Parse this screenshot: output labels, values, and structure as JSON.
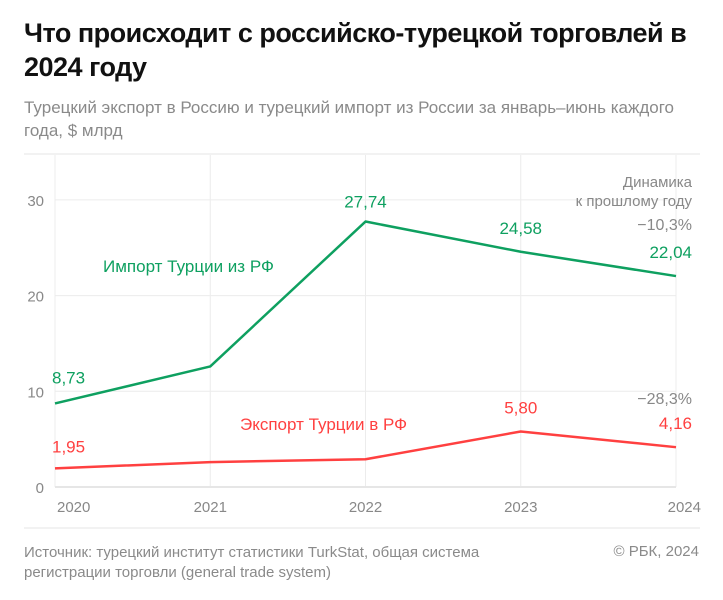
{
  "title": "Что происходит с российско-турецкой торговлей в 2024 году",
  "subtitle": "Турецкий экспорт в Россию и турецкий импорт из России за январь–июнь каждого года, $ млрд",
  "source": "Источник: турецкий институт статистики TurkStat, общая система регистрации торговли (general trade system)",
  "copyright": "© РБК, 2024",
  "chart_data": {
    "type": "line",
    "x": [
      "2020",
      "2021",
      "2022",
      "2023",
      "2024"
    ],
    "ylim": [
      0,
      33
    ],
    "yticks": [
      0,
      10,
      20,
      30
    ],
    "grid": true,
    "dynamics_header": [
      "Динамика",
      "к прошлому году"
    ],
    "series": [
      {
        "name": "Импорт Турции из РФ",
        "color": "#0ea060",
        "values": [
          8.73,
          12.6,
          27.74,
          24.58,
          22.04
        ],
        "labels": [
          "8,73",
          "",
          "27,74",
          "24,58",
          "22,04"
        ],
        "change": "−10,3%"
      },
      {
        "name": "Экспорт Турции в РФ",
        "color": "#ff4040",
        "values": [
          1.95,
          2.6,
          2.9,
          5.8,
          4.16
        ],
        "labels": [
          "1,95",
          "",
          "",
          "5,80",
          "4,16"
        ],
        "change": "−28,3%"
      }
    ]
  }
}
